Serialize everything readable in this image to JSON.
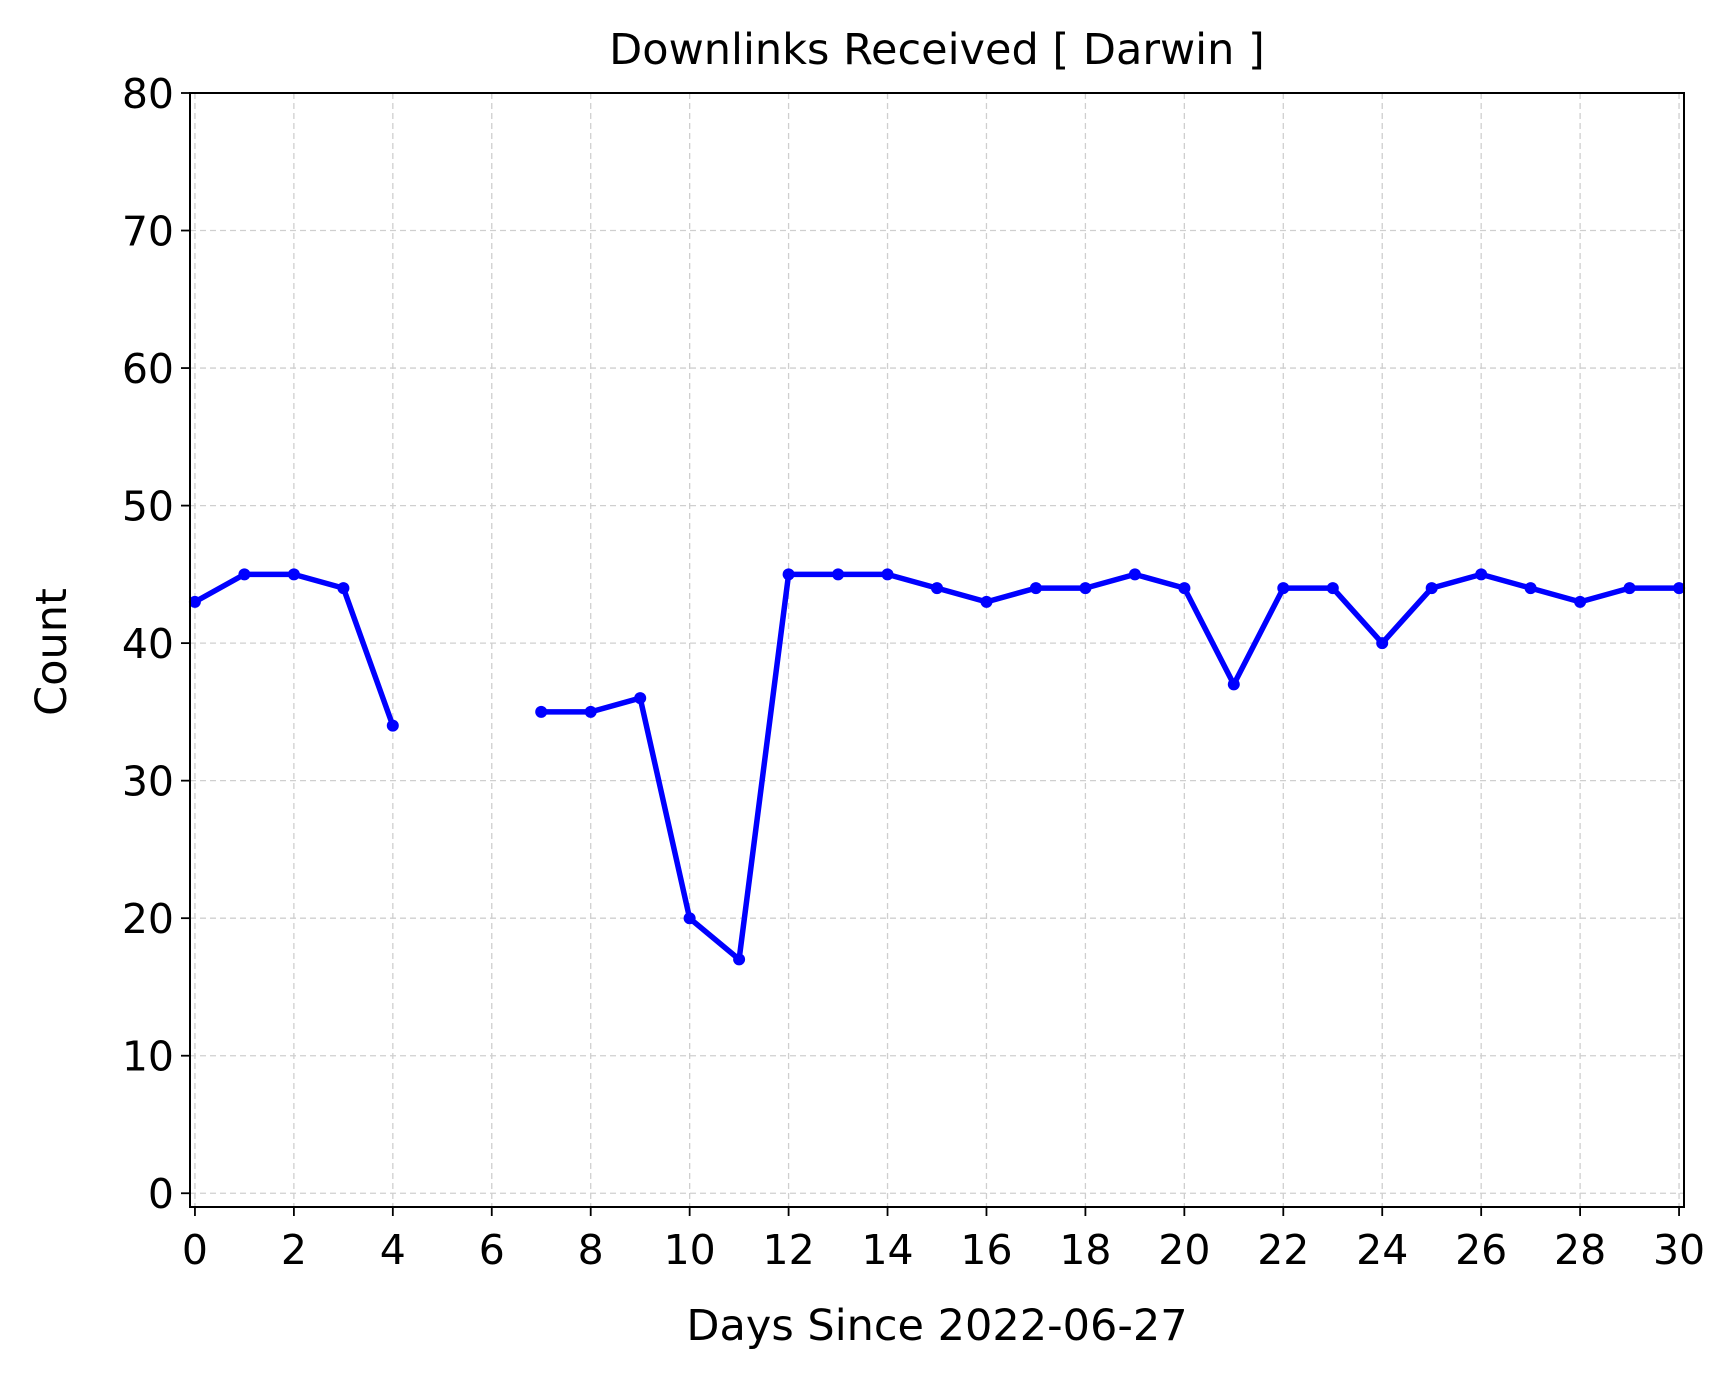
{
  "chart_data": {
    "type": "line",
    "title": "Downlinks Received [ Darwin ]",
    "xlabel": "Days Since 2022-06-27",
    "ylabel": "Count",
    "xlim": [
      -0.1,
      30.1
    ],
    "ylim": [
      -1,
      80
    ],
    "xticks": [
      0,
      2,
      4,
      6,
      8,
      10,
      12,
      14,
      16,
      18,
      20,
      22,
      24,
      26,
      28,
      30
    ],
    "yticks": [
      0,
      10,
      20,
      30,
      40,
      50,
      60,
      70,
      80
    ],
    "grid": true,
    "legend": "none",
    "series": [
      {
        "color": "#0000ff",
        "marker": "circle",
        "points": [
          [
            0,
            43
          ],
          [
            1,
            45
          ],
          [
            2,
            45
          ],
          [
            3,
            44
          ],
          [
            4,
            34
          ],
          [
            5,
            null
          ],
          [
            6,
            null
          ],
          [
            7,
            35
          ],
          [
            8,
            35
          ],
          [
            9,
            36
          ],
          [
            10,
            20
          ],
          [
            11,
            17
          ],
          [
            12,
            45
          ],
          [
            13,
            45
          ],
          [
            14,
            45
          ],
          [
            15,
            44
          ],
          [
            16,
            43
          ],
          [
            17,
            44
          ],
          [
            18,
            44
          ],
          [
            19,
            45
          ],
          [
            20,
            44
          ],
          [
            21,
            37
          ],
          [
            22,
            44
          ],
          [
            23,
            44
          ],
          [
            24,
            40
          ],
          [
            25,
            44
          ],
          [
            26,
            45
          ],
          [
            27,
            44
          ],
          [
            28,
            43
          ],
          [
            29,
            44
          ],
          [
            30,
            44
          ]
        ]
      }
    ]
  }
}
